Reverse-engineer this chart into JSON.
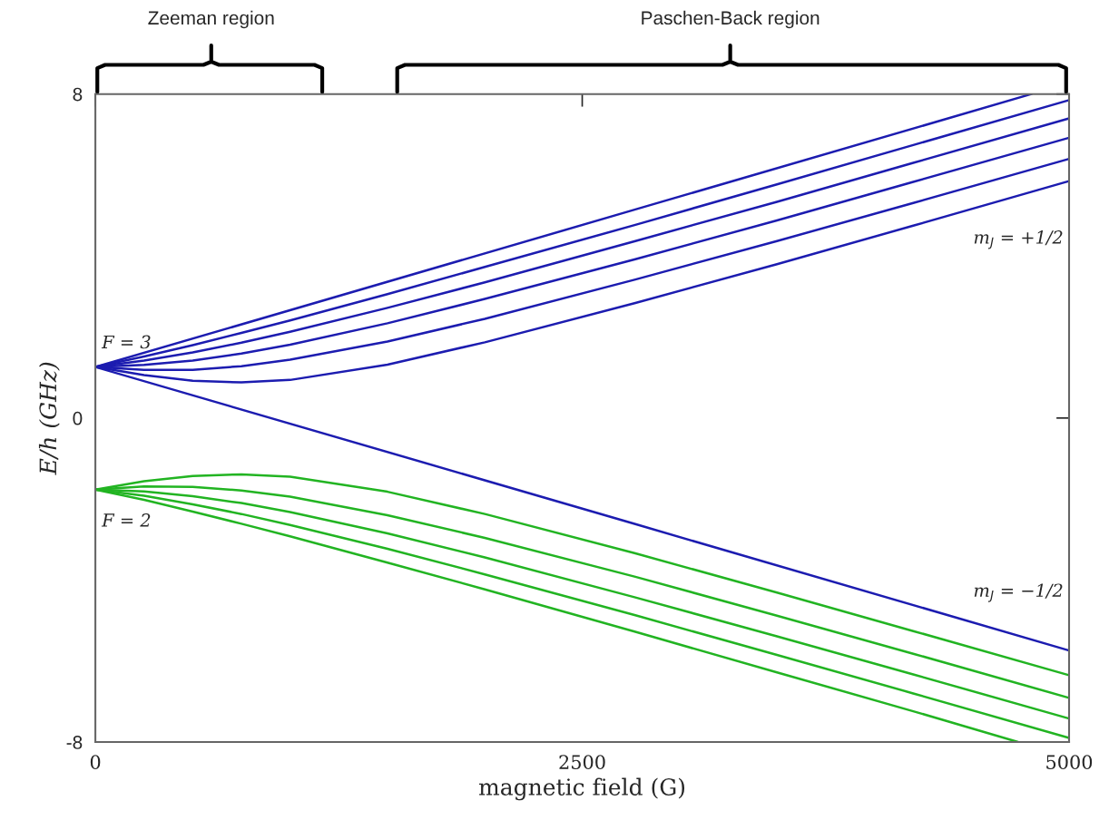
{
  "chart_data": {
    "type": "line",
    "xlabel": "magnetic field (G)",
    "ylabel": "E/h (GHz)",
    "xlim": [
      0,
      5000
    ],
    "xticks": [
      0,
      2500,
      5000
    ],
    "ylim": [
      -8,
      8
    ],
    "yticks": [
      {
        "value": -8,
        "label": "-8"
      },
      0,
      8
    ],
    "x": [
      0,
      250,
      500,
      750,
      1000,
      1500,
      2000,
      2773,
      3500,
      4200,
      5000
    ],
    "series": [
      {
        "color": "#1c1cb0",
        "x": [
          0,
          2773,
          4807
        ],
        "values": [
          1.26,
          5.15,
          8
        ]
      },
      {
        "color": "#1c1cb0",
        "values": [
          1.26,
          1.52,
          1.8,
          2.1,
          2.41,
          3.06,
          3.73,
          4.77,
          5.77,
          6.74,
          7.85
        ]
      },
      {
        "color": "#1c1cb0",
        "values": [
          1.26,
          1.42,
          1.62,
          1.86,
          2.13,
          2.72,
          3.35,
          4.37,
          5.34,
          6.3,
          7.4
        ]
      },
      {
        "color": "#1c1cb0",
        "values": [
          1.26,
          1.31,
          1.42,
          1.59,
          1.81,
          2.34,
          2.94,
          3.92,
          4.88,
          5.83,
          6.92
        ]
      },
      {
        "color": "#1c1cb0",
        "values": [
          1.26,
          1.19,
          1.19,
          1.28,
          1.44,
          1.89,
          2.45,
          3.42,
          4.37,
          5.31,
          6.4
        ]
      },
      {
        "color": "#1c1cb0",
        "values": [
          1.26,
          1.06,
          0.92,
          0.88,
          0.94,
          1.32,
          1.87,
          2.84,
          3.8,
          4.75,
          5.85
        ]
      },
      {
        "color": "#1c1cb0",
        "x": [
          0,
          2773,
          5000
        ],
        "values": [
          1.26,
          -2.62,
          -5.74
        ]
      },
      {
        "color": "#22b422",
        "values": [
          -1.77,
          -1.56,
          -1.43,
          -1.39,
          -1.45,
          -1.82,
          -2.37,
          -3.34,
          -4.31,
          -5.26,
          -6.35
        ]
      },
      {
        "color": "#22b422",
        "values": [
          -1.77,
          -1.69,
          -1.7,
          -1.79,
          -1.94,
          -2.4,
          -2.96,
          -3.92,
          -4.88,
          -5.82,
          -6.91
        ]
      },
      {
        "color": "#22b422",
        "values": [
          -1.77,
          -1.81,
          -1.93,
          -2.1,
          -2.32,
          -2.85,
          -3.44,
          -4.43,
          -5.39,
          -6.33,
          -7.42
        ]
      },
      {
        "color": "#22b422",
        "values": [
          -1.77,
          -1.92,
          -2.13,
          -2.37,
          -2.64,
          -3.23,
          -3.86,
          -4.87,
          -5.85,
          -6.8,
          -7.9
        ]
      },
      {
        "color": "#22b422",
        "x": [
          0,
          250,
          500,
          750,
          1000,
          1500,
          2000,
          2773,
          3500,
          4200,
          4738
        ],
        "values": [
          -1.77,
          -2.02,
          -2.31,
          -2.61,
          -2.92,
          -3.57,
          -4.23,
          -5.28,
          -6.28,
          -7.24,
          -8.0
        ]
      }
    ],
    "annotations": [
      "F = 3",
      "F = 2",
      "m$_{J}$ = +1/2",
      "m$_{J}$ = −1/2",
      "Zeeman region",
      "Paschen-Back region"
    ],
    "grid": false,
    "marker": "none",
    "line_style": "solid"
  }
}
